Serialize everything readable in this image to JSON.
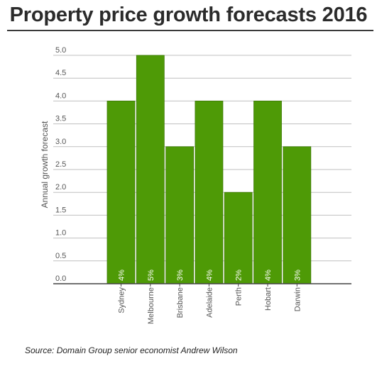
{
  "title": "Property price growth forecasts 2016",
  "source": "Source: Domain Group senior economist Andrew Wilson",
  "colors": {
    "bar": "#4e9a06",
    "bar_border": "#3d7a05",
    "grid": "#bfbfbf",
    "axis": "#444444",
    "text": "#555555",
    "bar_label": "#ffffff"
  },
  "chart_data": {
    "type": "bar",
    "title": "Property price growth forecasts 2016",
    "ylabel": "Annual growth forecast",
    "xlabel": "",
    "categories": [
      "Sydney",
      "Melbourne",
      "Brisbane",
      "Adelaide",
      "Perth",
      "Hobart",
      "Darwin"
    ],
    "values": [
      4,
      5,
      3,
      4,
      2,
      4,
      3
    ],
    "data_labels": [
      "4%",
      "5%",
      "3%",
      "4%",
      "2%",
      "4%",
      "3%"
    ],
    "ylim": [
      0,
      5
    ],
    "yticks": [
      "0.0",
      "0.5",
      "1.0",
      "1.5",
      "2.0",
      "2.5",
      "3.0",
      "3.5",
      "4.0",
      "4.5",
      "5.0"
    ],
    "grid": true
  }
}
